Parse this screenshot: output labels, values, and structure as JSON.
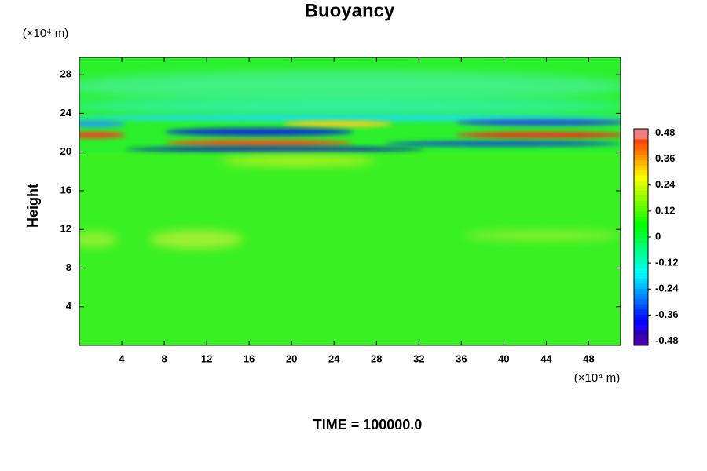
{
  "chart_data": {
    "type": "heatmap",
    "title": "Buoyancy",
    "y_label": "Height",
    "x_unit": "(×10⁴ m)",
    "y_unit": "(×10⁴ m)",
    "footer": "TIME = 100000.0",
    "xlim": [
      0,
      51
    ],
    "xticks": [
      4,
      8,
      12,
      16,
      20,
      24,
      28,
      32,
      36,
      40,
      44,
      48
    ],
    "ylim": [
      0,
      29.8
    ],
    "yticks": [
      4,
      8,
      12,
      16,
      20,
      24,
      28
    ],
    "clim": [
      -0.5,
      0.5
    ],
    "cticks": [
      0.48,
      0.36,
      0.24,
      0.12,
      0,
      -0.12,
      -0.24,
      -0.36,
      -0.48
    ]
  }
}
